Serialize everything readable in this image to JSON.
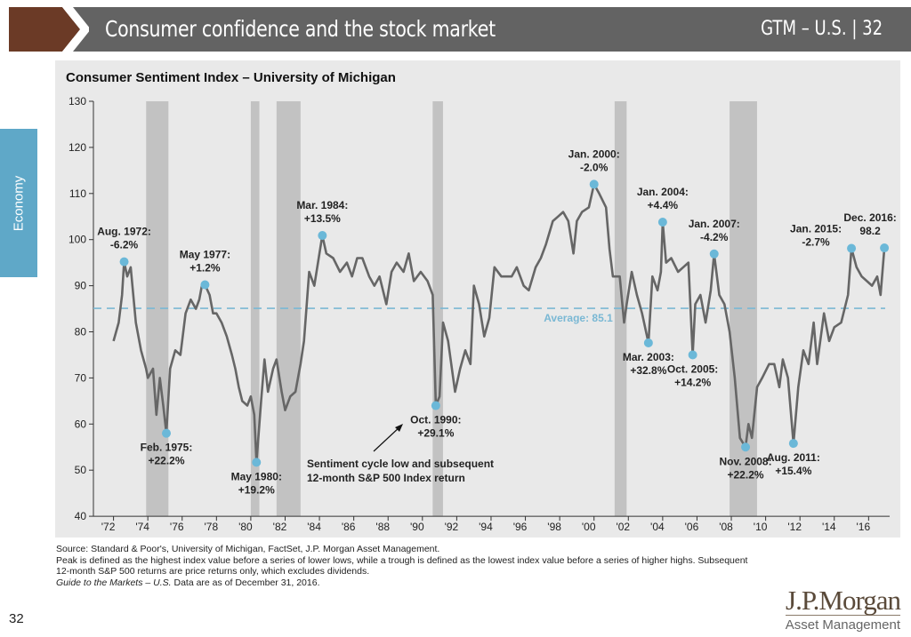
{
  "header": {
    "title": "Consumer confidence and the stock market",
    "right": "GTM – U.S.  |  32"
  },
  "side_tab": "Economy",
  "page_number": "32",
  "logo": {
    "name": "J.P.Morgan",
    "sub": "Asset Management"
  },
  "footnotes": [
    "Source: Standard & Poor's, University of Michigan, FactSet, J.P. Morgan Asset Management.",
    "Peak is defined as the highest index value before a series of lower lows, while a trough is defined as the lowest index value before a series of higher highs. Subsequent 12-month S&P 500 returns are price returns only, which excludes dividends."
  ],
  "footnote_italic": "Guide to the Markets – U.S.",
  "footnote_date": " Data are as of December 31, 2016.",
  "colors": {
    "line": "#666666",
    "point": "#6bb8d8",
    "average": "#7ab8d4",
    "recession": "#c2c2c2",
    "header": "#636363",
    "chevron": "#6b3a26",
    "tab": "#5fa8c8"
  },
  "chart_data": {
    "type": "line",
    "title": "Consumer Sentiment Index – University of Michigan",
    "ylim": [
      40,
      130
    ],
    "yticks": [
      40,
      50,
      60,
      70,
      80,
      90,
      100,
      110,
      120,
      130
    ],
    "xlim": [
      1971.9,
      2017.1
    ],
    "xticks": [
      1972,
      1974,
      1976,
      1978,
      1980,
      1982,
      1984,
      1986,
      1988,
      1990,
      1992,
      1994,
      1996,
      1998,
      2000,
      2002,
      2004,
      2006,
      2008,
      2010,
      2012,
      2014,
      2016
    ],
    "xtick_labels": [
      "'72",
      "'74",
      "'76",
      "'78",
      "'80",
      "'82",
      "'84",
      "'86",
      "'88",
      "'90",
      "'92",
      "'94",
      "'96",
      "'98",
      "'00",
      "'02",
      "'04",
      "'06",
      "'08",
      "'10",
      "'12",
      "'14",
      "'16"
    ],
    "average": {
      "value": 85.1,
      "label": "Average: 85.1"
    },
    "recessions": [
      [
        1973.9,
        1975.2
      ],
      [
        1980.0,
        1980.5
      ],
      [
        1981.5,
        1982.9
      ],
      [
        1990.6,
        1991.2
      ],
      [
        2001.2,
        2001.9
      ],
      [
        2007.9,
        2009.5
      ]
    ],
    "series": [
      [
        1972.0,
        78
      ],
      [
        1972.3,
        82
      ],
      [
        1972.5,
        88
      ],
      [
        1972.62,
        95.2
      ],
      [
        1972.8,
        92
      ],
      [
        1973.0,
        94
      ],
      [
        1973.3,
        82
      ],
      [
        1973.6,
        76
      ],
      [
        1973.9,
        72
      ],
      [
        1974.0,
        70
      ],
      [
        1974.3,
        72
      ],
      [
        1974.5,
        62
      ],
      [
        1974.7,
        70
      ],
      [
        1974.9,
        64
      ],
      [
        1975.08,
        58
      ],
      [
        1975.3,
        72
      ],
      [
        1975.6,
        76
      ],
      [
        1975.9,
        75
      ],
      [
        1976.2,
        84
      ],
      [
        1976.5,
        87
      ],
      [
        1976.8,
        85
      ],
      [
        1977.0,
        87
      ],
      [
        1977.15,
        90
      ],
      [
        1977.33,
        90.2
      ],
      [
        1977.6,
        88
      ],
      [
        1977.8,
        84
      ],
      [
        1978.0,
        84
      ],
      [
        1978.3,
        82
      ],
      [
        1978.6,
        79
      ],
      [
        1978.9,
        75
      ],
      [
        1979.1,
        72
      ],
      [
        1979.3,
        68
      ],
      [
        1979.5,
        65
      ],
      [
        1979.8,
        64
      ],
      [
        1980.0,
        66
      ],
      [
        1980.2,
        62
      ],
      [
        1980.33,
        51.7
      ],
      [
        1980.6,
        65
      ],
      [
        1980.8,
        74
      ],
      [
        1981.0,
        67
      ],
      [
        1981.3,
        72
      ],
      [
        1981.5,
        74
      ],
      [
        1981.8,
        67
      ],
      [
        1982.0,
        63
      ],
      [
        1982.3,
        66
      ],
      [
        1982.6,
        67
      ],
      [
        1982.9,
        73
      ],
      [
        1983.1,
        78
      ],
      [
        1983.4,
        93
      ],
      [
        1983.7,
        90
      ],
      [
        1984.17,
        100.9
      ],
      [
        1984.4,
        97
      ],
      [
        1984.8,
        96
      ],
      [
        1985.2,
        93
      ],
      [
        1985.6,
        95
      ],
      [
        1985.9,
        92
      ],
      [
        1986.2,
        96
      ],
      [
        1986.5,
        96
      ],
      [
        1986.9,
        92
      ],
      [
        1987.2,
        90
      ],
      [
        1987.5,
        92
      ],
      [
        1987.9,
        86
      ],
      [
        1988.2,
        93
      ],
      [
        1988.5,
        95
      ],
      [
        1988.9,
        93
      ],
      [
        1989.2,
        97
      ],
      [
        1989.5,
        91
      ],
      [
        1989.9,
        93
      ],
      [
        1990.3,
        91
      ],
      [
        1990.6,
        88
      ],
      [
        1990.78,
        64
      ],
      [
        1991.0,
        66
      ],
      [
        1991.2,
        82
      ],
      [
        1991.5,
        78
      ],
      [
        1991.9,
        67
      ],
      [
        1992.2,
        72
      ],
      [
        1992.5,
        76
      ],
      [
        1992.8,
        73
      ],
      [
        1993.0,
        90
      ],
      [
        1993.3,
        86
      ],
      [
        1993.6,
        79
      ],
      [
        1993.9,
        83
      ],
      [
        1994.2,
        94
      ],
      [
        1994.6,
        92
      ],
      [
        1994.9,
        92
      ],
      [
        1995.2,
        92
      ],
      [
        1995.5,
        94
      ],
      [
        1995.9,
        90
      ],
      [
        1996.2,
        89
      ],
      [
        1996.6,
        94
      ],
      [
        1996.9,
        96
      ],
      [
        1997.2,
        99
      ],
      [
        1997.6,
        104
      ],
      [
        1997.9,
        105
      ],
      [
        1998.2,
        106
      ],
      [
        1998.5,
        104
      ],
      [
        1998.8,
        97
      ],
      [
        1999.0,
        104
      ],
      [
        1999.3,
        106
      ],
      [
        1999.7,
        107
      ],
      [
        2000.0,
        112
      ],
      [
        2000.3,
        110
      ],
      [
        2000.7,
        107
      ],
      [
        2000.9,
        98
      ],
      [
        2001.1,
        92
      ],
      [
        2001.5,
        92
      ],
      [
        2001.75,
        82
      ],
      [
        2001.9,
        86
      ],
      [
        2002.2,
        93
      ],
      [
        2002.5,
        88
      ],
      [
        2002.8,
        84
      ],
      [
        2003.17,
        77.6
      ],
      [
        2003.4,
        92
      ],
      [
        2003.7,
        89
      ],
      [
        2003.9,
        93
      ],
      [
        2004.0,
        103.8
      ],
      [
        2004.2,
        95
      ],
      [
        2004.5,
        96
      ],
      [
        2004.9,
        93
      ],
      [
        2005.2,
        94
      ],
      [
        2005.5,
        95
      ],
      [
        2005.75,
        75
      ],
      [
        2005.9,
        86
      ],
      [
        2006.2,
        88
      ],
      [
        2006.5,
        82
      ],
      [
        2006.8,
        89
      ],
      [
        2007.0,
        96.9
      ],
      [
        2007.3,
        88
      ],
      [
        2007.6,
        86
      ],
      [
        2007.9,
        80
      ],
      [
        2008.2,
        70
      ],
      [
        2008.5,
        57
      ],
      [
        2008.83,
        55
      ],
      [
        2009.0,
        60
      ],
      [
        2009.2,
        57
      ],
      [
        2009.5,
        68
      ],
      [
        2009.8,
        70
      ],
      [
        2010.2,
        73
      ],
      [
        2010.5,
        73
      ],
      [
        2010.8,
        68
      ],
      [
        2011.0,
        74
      ],
      [
        2011.3,
        70
      ],
      [
        2011.62,
        55.8
      ],
      [
        2011.9,
        68
      ],
      [
        2012.2,
        76
      ],
      [
        2012.5,
        73
      ],
      [
        2012.8,
        82
      ],
      [
        2013.0,
        73
      ],
      [
        2013.4,
        84
      ],
      [
        2013.7,
        78
      ],
      [
        2014.0,
        81
      ],
      [
        2014.4,
        82
      ],
      [
        2014.8,
        88
      ],
      [
        2015.0,
        98.1
      ],
      [
        2015.3,
        94
      ],
      [
        2015.6,
        92
      ],
      [
        2015.9,
        91
      ],
      [
        2016.2,
        90
      ],
      [
        2016.5,
        92
      ],
      [
        2016.7,
        88
      ],
      [
        2016.92,
        98.2
      ]
    ],
    "annotations": [
      {
        "x": 1972.62,
        "y": 95.2,
        "line1": "Aug. 1972:",
        "line2": "-6.2%",
        "pos": "above"
      },
      {
        "x": 1975.08,
        "y": 58,
        "line1": "Feb. 1975:",
        "line2": "+22.2%",
        "pos": "below"
      },
      {
        "x": 1977.33,
        "y": 90.2,
        "line1": "May 1977:",
        "line2": "+1.2%",
        "pos": "above"
      },
      {
        "x": 1980.33,
        "y": 51.7,
        "line1": "May 1980:",
        "line2": "+19.2%",
        "pos": "below"
      },
      {
        "x": 1984.17,
        "y": 100.9,
        "line1": "Mar. 1984:",
        "line2": "+13.5%",
        "pos": "above"
      },
      {
        "x": 1990.78,
        "y": 64,
        "line1": "Oct. 1990:",
        "line2": "+29.1%",
        "pos": "below"
      },
      {
        "x": 2000.0,
        "y": 112,
        "line1": "Jan. 2000:",
        "line2": "-2.0%",
        "pos": "above"
      },
      {
        "x": 2003.17,
        "y": 77.6,
        "line1": "Mar. 2003:",
        "line2": "+32.8%",
        "pos": "below"
      },
      {
        "x": 2004.0,
        "y": 103.8,
        "line1": "Jan. 2004:",
        "line2": "+4.4%",
        "pos": "above"
      },
      {
        "x": 2005.75,
        "y": 75,
        "line1": "Oct. 2005:",
        "line2": "+14.2%",
        "pos": "below"
      },
      {
        "x": 2007.0,
        "y": 96.9,
        "line1": "Jan. 2007:",
        "line2": "-4.2%",
        "pos": "above"
      },
      {
        "x": 2008.83,
        "y": 55,
        "line1": "Nov. 2008:",
        "line2": "+22.2%",
        "pos": "below"
      },
      {
        "x": 2011.62,
        "y": 55.8,
        "line1": "Aug. 2011:",
        "line2": "+15.4%",
        "pos": "below"
      },
      {
        "x": 2015.0,
        "y": 98.1,
        "line1": "Jan. 2015:",
        "line2": "-2.7%",
        "pos": "left"
      },
      {
        "x": 2016.92,
        "y": 98.2,
        "line1": "Dec. 2016:",
        "line2": "98.2",
        "pos": "above"
      }
    ],
    "callout": {
      "line1": "Sentiment cycle low and subsequent",
      "line2": "12-month S&P 500 Index return"
    }
  }
}
